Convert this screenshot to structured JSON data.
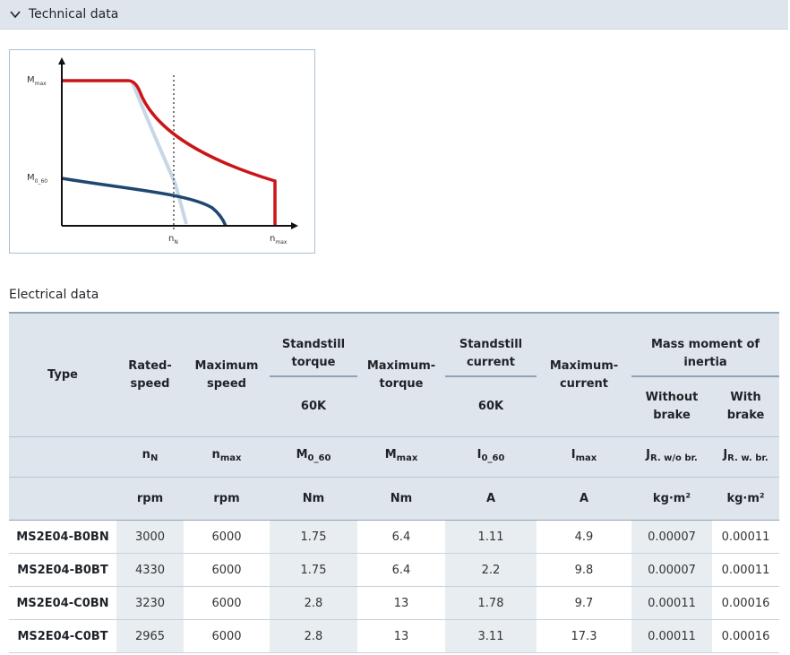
{
  "accordion": {
    "title": "Technical data",
    "icon": "chevron-down-icon"
  },
  "chart": {
    "y_labels": {
      "max": "M",
      "max_sub": "max",
      "zero": "M",
      "zero_sub": "0_60"
    },
    "x_labels": {
      "rated": "n",
      "rated_sub": "N",
      "max": "n",
      "max_sub": "max"
    },
    "colors": {
      "max_curve": "#cc1417",
      "continuous_curve": "#1f4770",
      "limit_curve": "#c8d7e5"
    }
  },
  "section": {
    "title": "Electrical data"
  },
  "table": {
    "headers": {
      "type": "Type",
      "rated_speed": "Rated-\nspeed",
      "max_speed": "Maximum\nspeed",
      "standstill_torque": "Standstill\ntorque",
      "max_torque": "Maximum-\ntorque",
      "standstill_current": "Standstill\ncurrent",
      "max_current": "Maximum-\ncurrent",
      "inertia": "Mass moment of\ninertia",
      "torque_sub": "60K",
      "current_sub": "60K",
      "without_brake": "Without\nbrake",
      "with_brake": "With\nbrake"
    },
    "symbols": {
      "nN": {
        "base": "n",
        "sub": "N"
      },
      "nmax": {
        "base": "n",
        "sub": "max"
      },
      "M0": {
        "base": "M",
        "sub": "0_60"
      },
      "Mmax": {
        "base": "M",
        "sub": "max"
      },
      "I0": {
        "base": "I",
        "sub": "0_60"
      },
      "Imax": {
        "base": "I",
        "sub": "max"
      },
      "Jwo": {
        "base": "J",
        "sub": "R. w/o br."
      },
      "Jw": {
        "base": "J",
        "sub": "R. w. br."
      }
    },
    "units": [
      "rpm",
      "rpm",
      "Nm",
      "Nm",
      "A",
      "A",
      "kg·m²",
      "kg·m²"
    ],
    "rows": [
      {
        "type": "MS2E04-B0BN",
        "values": [
          "3000",
          "6000",
          "1.75",
          "6.4",
          "1.11",
          "4.9",
          "0.00007",
          "0.00011"
        ]
      },
      {
        "type": "MS2E04-B0BT",
        "values": [
          "4330",
          "6000",
          "1.75",
          "6.4",
          "2.2",
          "9.8",
          "0.00007",
          "0.00011"
        ]
      },
      {
        "type": "MS2E04-C0BN",
        "values": [
          "3230",
          "6000",
          "2.8",
          "13",
          "1.78",
          "9.7",
          "0.00011",
          "0.00016"
        ]
      },
      {
        "type": "MS2E04-C0BT",
        "values": [
          "2965",
          "6000",
          "2.8",
          "13",
          "3.11",
          "17.3",
          "0.00011",
          "0.00016"
        ]
      }
    ]
  }
}
